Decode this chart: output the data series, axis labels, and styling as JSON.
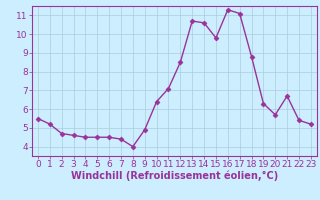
{
  "x": [
    0,
    1,
    2,
    3,
    4,
    5,
    6,
    7,
    8,
    9,
    10,
    11,
    12,
    13,
    14,
    15,
    16,
    17,
    18,
    19,
    20,
    21,
    22,
    23
  ],
  "y": [
    5.5,
    5.2,
    4.7,
    4.6,
    4.5,
    4.5,
    4.5,
    4.4,
    4.0,
    4.9,
    6.4,
    7.1,
    8.5,
    10.7,
    10.6,
    9.8,
    11.3,
    11.1,
    8.8,
    6.3,
    5.7,
    6.7,
    5.4,
    5.2
  ],
  "line_color": "#993399",
  "marker": "D",
  "marker_size": 2.5,
  "bg_color": "#cceeff",
  "grid_color": "#aaccdd",
  "axis_color": "#993399",
  "tick_color": "#993399",
  "xlabel": "Windchill (Refroidissement éolien,°C)",
  "xlabel_color": "#993399",
  "xlim": [
    -0.5,
    23.5
  ],
  "ylim": [
    3.5,
    11.5
  ],
  "yticks": [
    4,
    5,
    6,
    7,
    8,
    9,
    10,
    11
  ],
  "xticks": [
    0,
    1,
    2,
    3,
    4,
    5,
    6,
    7,
    8,
    9,
    10,
    11,
    12,
    13,
    14,
    15,
    16,
    17,
    18,
    19,
    20,
    21,
    22,
    23
  ],
  "font_size": 6.5,
  "xlabel_fontsize": 7.0,
  "linewidth": 1.0
}
